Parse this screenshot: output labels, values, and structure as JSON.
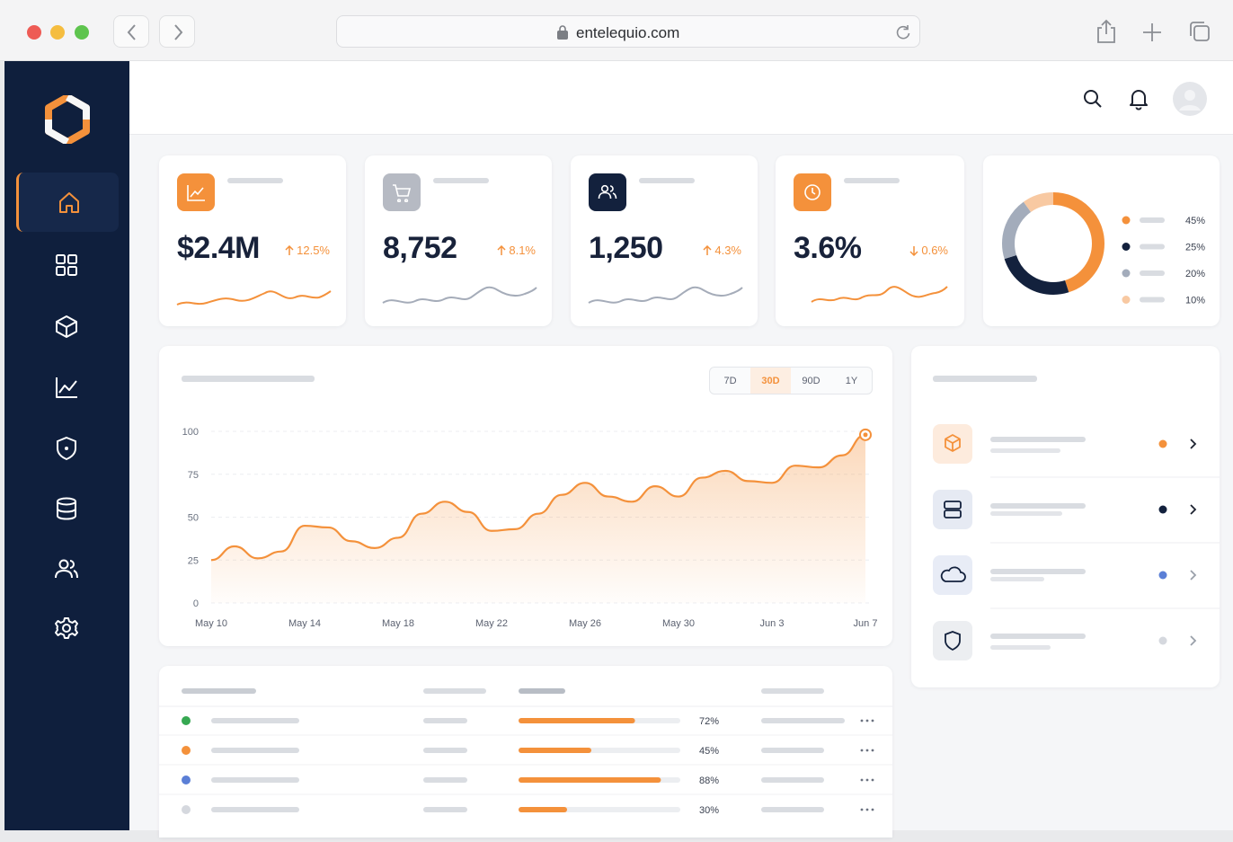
{
  "browser": {
    "url": "entelequio.com"
  },
  "kpis": [
    {
      "value": "$2.4M",
      "change": "12.5%",
      "trend": "up"
    },
    {
      "value": "8,752",
      "change": "8.1%",
      "trend": "up"
    },
    {
      "value": "1,250",
      "change": "4.3%",
      "trend": "up"
    },
    {
      "value": "3.6%",
      "change": "0.6%",
      "trend": "down"
    }
  ],
  "chart_data": [
    {
      "type": "pie",
      "donut": true,
      "categories": [
        null,
        null,
        null,
        null
      ],
      "values": [
        45,
        25,
        20,
        10
      ],
      "value_labels": [
        "45%",
        "25%",
        "20%",
        "10%"
      ],
      "colors": [
        "#f4913b",
        "#13213d",
        "#a3acbb",
        "#f8c9a2"
      ]
    },
    {
      "type": "line",
      "color": "#f4913b",
      "grid": true,
      "categories": [
        "May 10",
        null,
        null,
        null,
        "May 14",
        null,
        null,
        null,
        "May 18",
        null,
        null,
        null,
        "May 22",
        null,
        null,
        null,
        "May 26",
        null,
        null,
        null,
        "May 30",
        null,
        null,
        null,
        "Jun 3",
        null,
        null,
        null,
        "Jun 7"
      ],
      "values": [
        25,
        33,
        26,
        30,
        45,
        44,
        36,
        32,
        38,
        52,
        59,
        53,
        42,
        43,
        52,
        63,
        70,
        62,
        59,
        68,
        62,
        73,
        77,
        71,
        70,
        80,
        79,
        86,
        98
      ],
      "ylim": [
        0,
        100
      ],
      "yticks": [
        0,
        25,
        50,
        75,
        100
      ]
    }
  ],
  "period_selector": {
    "options": [
      "7D",
      "30D",
      "90D",
      "1Y"
    ],
    "selected": "30D"
  },
  "table": {
    "rows": [
      {
        "status_color": "#36a852",
        "progress": {
          "value": 72,
          "label": "72%"
        }
      },
      {
        "status_color": "#f4913b",
        "progress": {
          "value": 45,
          "label": "45%"
        }
      },
      {
        "status_color": "#5b7fd6",
        "progress": {
          "value": 88,
          "label": "88%"
        }
      },
      {
        "status_color": "#d5d8de",
        "progress": {
          "value": 30,
          "label": "30%"
        }
      }
    ]
  }
}
